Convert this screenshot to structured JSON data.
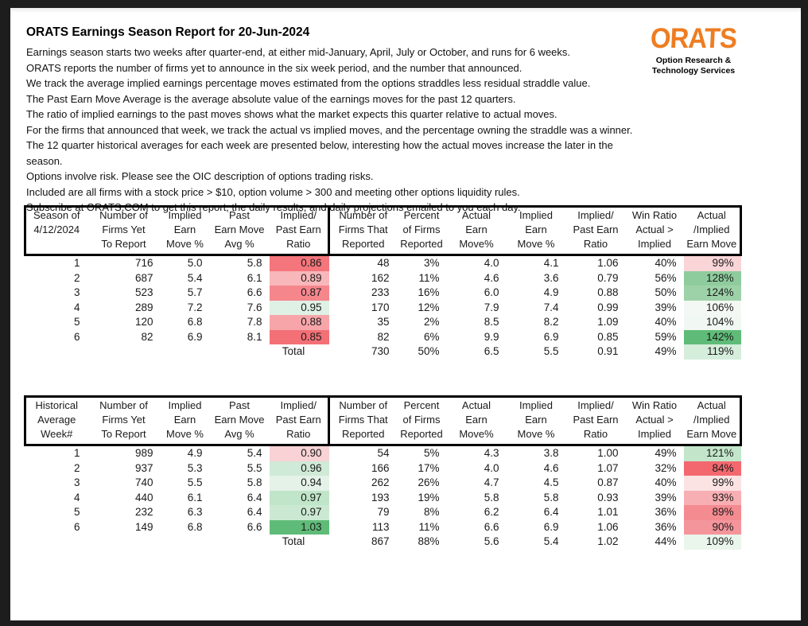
{
  "header": {
    "title": "ORATS Earnings Season Report for 20-Jun-2024",
    "intro_lines": [
      "Earnings season starts two weeks after quarter-end, at either mid-January, April, July or October, and runs for 6 weeks.",
      "ORATS reports the number of firms yet to announce in the six week period, and the number that announced.",
      "We track the average implied earnings percentage moves estimated from the options straddles less residual straddle value.",
      "The Past Earn Move Average is the average absolute value of the earnings moves for the past 12 quarters.",
      "The ratio of implied earnings to the past moves shows what the market expects this quarter relative to actual moves.",
      "For the firms that announced that week, we track the actual vs implied moves, and the percentage owning the straddle was a winner.",
      "The 12 quarter historical averages for each week are presented below, interesting how the actual moves increase the later in the season.",
      "Options involve risk. Please see the OIC description of options trading risks.",
      "Included are all firms with a stock price > $10, option volume > 300 and meeting other options liquidity rules.",
      "Subscribe at ORATS.COM to get this report, the daily results, and daily projections emailed to you each day."
    ]
  },
  "logo": {
    "brand": "ORATS",
    "tagline": "Option Research &\nTechnology Services",
    "brand_color": "#EE7D22"
  },
  "tables": [
    {
      "name": "current-season",
      "header": [
        "Season of\n4/12/2024",
        "Number of\nFirms Yet\nTo Report",
        "Implied\nEarn\nMove %",
        "Past\nEarn Move\nAvg %",
        "Implied/\nPast Earn\nRatio",
        "Number of\nFirms That\nReported",
        "Percent\nof Firms\nReported",
        "Actual\nEarn\nMove%",
        "Implied\nEarn\nMove %",
        "Implied/\nPast Earn\nRatio",
        "Win Ratio\nActual >\nImplied",
        "Actual\n/Implied\nEarn Move"
      ],
      "rows": [
        {
          "cells": [
            "1",
            "716",
            "5.0",
            "5.8",
            "0.86",
            "48",
            "3%",
            "4.0",
            "4.1",
            "1.06",
            "40%",
            "99%"
          ],
          "bg": {
            "4": "#F4757B",
            "11": "#F9D5D7"
          }
        },
        {
          "cells": [
            "2",
            "687",
            "5.4",
            "6.1",
            "0.89",
            "162",
            "11%",
            "4.6",
            "3.6",
            "0.79",
            "56%",
            "128%"
          ],
          "bg": {
            "4": "#F8B7BA",
            "11": "#8FCC9D"
          }
        },
        {
          "cells": [
            "3",
            "523",
            "5.7",
            "6.6",
            "0.87",
            "233",
            "16%",
            "6.0",
            "4.9",
            "0.88",
            "50%",
            "124%"
          ],
          "bg": {
            "4": "#F5868C",
            "11": "#9DD2A8"
          }
        },
        {
          "cells": [
            "4",
            "289",
            "7.2",
            "7.6",
            "0.95",
            "170",
            "12%",
            "7.9",
            "7.4",
            "0.99",
            "39%",
            "106%"
          ],
          "bg": {
            "4": "#DFF0E4",
            "11": "#F3F8F4"
          }
        },
        {
          "cells": [
            "5",
            "120",
            "6.8",
            "7.8",
            "0.88",
            "35",
            "2%",
            "8.5",
            "8.2",
            "1.09",
            "40%",
            "104%"
          ],
          "bg": {
            "4": "#F7A5A9",
            "11": "#F1F7F2"
          }
        },
        {
          "cells": [
            "6",
            "82",
            "6.9",
            "8.1",
            "0.85",
            "82",
            "6%",
            "9.9",
            "6.9",
            "0.85",
            "59%",
            "142%"
          ],
          "bg": {
            "4": "#F37076",
            "11": "#5FBC78"
          }
        },
        {
          "total": true,
          "cells": [
            "",
            "",
            "",
            "",
            "Total",
            "730",
            "50%",
            "6.5",
            "5.5",
            "0.91",
            "49%",
            "119%"
          ],
          "bg": {
            "11": "#D5EDDB"
          }
        }
      ]
    },
    {
      "name": "historical-average",
      "header": [
        "Historical\nAverage\nWeek#",
        "Number of\nFirms Yet\nTo Report",
        "Implied\nEarn\nMove %",
        "Past\nEarn Move\nAvg %",
        "Implied/\nPast Earn\nRatio",
        "Number of\nFirms That\nReported",
        "Percent\nof Firms\nReported",
        "Actual\nEarn\nMove%",
        "Implied\nEarn\nMove %",
        "Implied/\nPast Earn\nRatio",
        "Win Ratio\nActual >\nImplied",
        "Actual\n/Implied\nEarn Move"
      ],
      "rows": [
        {
          "cells": [
            "1",
            "989",
            "4.9",
            "5.4",
            "0.90",
            "54",
            "5%",
            "4.3",
            "3.8",
            "1.00",
            "49%",
            "121%"
          ],
          "bg": {
            "4": "#F8D2D4",
            "11": "#C3E6CB"
          }
        },
        {
          "cells": [
            "2",
            "937",
            "5.3",
            "5.5",
            "0.96",
            "166",
            "17%",
            "4.0",
            "4.6",
            "1.07",
            "32%",
            "84%"
          ],
          "bg": {
            "4": "#CFEAD6",
            "11": "#F3686F"
          }
        },
        {
          "cells": [
            "3",
            "740",
            "5.5",
            "5.8",
            "0.94",
            "262",
            "26%",
            "4.7",
            "4.5",
            "0.87",
            "40%",
            "99%"
          ],
          "bg": {
            "4": "#E5F2E8",
            "11": "#FBE3E4"
          }
        },
        {
          "cells": [
            "4",
            "440",
            "6.1",
            "6.4",
            "0.97",
            "193",
            "19%",
            "5.8",
            "5.8",
            "0.93",
            "39%",
            "93%"
          ],
          "bg": {
            "4": "#C0E5C9",
            "11": "#F7AFB3"
          }
        },
        {
          "cells": [
            "5",
            "232",
            "6.3",
            "6.4",
            "0.97",
            "79",
            "8%",
            "6.2",
            "6.4",
            "1.01",
            "36%",
            "89%"
          ],
          "bg": {
            "4": "#CBE9D2",
            "11": "#F48B90"
          }
        },
        {
          "cells": [
            "6",
            "149",
            "6.8",
            "6.6",
            "1.03",
            "113",
            "11%",
            "6.6",
            "6.9",
            "1.06",
            "36%",
            "90%"
          ],
          "bg": {
            "4": "#5FBC78",
            "11": "#F4959B"
          }
        },
        {
          "total": true,
          "cells": [
            "",
            "",
            "",
            "",
            "Total",
            "867",
            "88%",
            "5.6",
            "5.4",
            "1.02",
            "44%",
            "109%"
          ],
          "bg": {
            "11": "#EAF5EC"
          }
        }
      ]
    }
  ]
}
